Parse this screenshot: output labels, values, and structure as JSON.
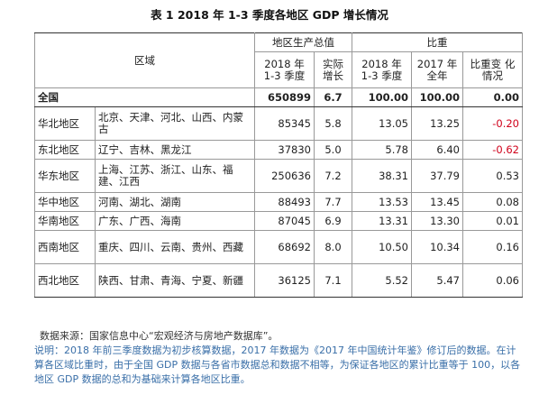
{
  "title": "表 1   2018 年 1-3 季度各地区 GDP 增长情况",
  "header": {
    "region": "区域",
    "gdp_group": "地区生产总值",
    "ratio_group": "比重",
    "gdp_2018": "2018 年 1-3 季度",
    "growth": "实际 增长",
    "share_2018": "2018 年 1-3 季度",
    "share_2017": "2017 年全年",
    "share_change": "比重变 化情况"
  },
  "national": {
    "name": "全国",
    "gdp": "650899",
    "growth": "6.7",
    "share_2018": "100.00",
    "share_2017": "100.00",
    "change": "0.00"
  },
  "rows": [
    {
      "region": "华北地区",
      "provinces": "北京、天津、河北、山西、内蒙古",
      "gdp": "85345",
      "growth": "5.8",
      "share_2018": "13.05",
      "share_2017": "13.25",
      "change": "-0.20",
      "neg": true
    },
    {
      "region": "东北地区",
      "provinces": "辽宁、吉林、黑龙江",
      "gdp": "37830",
      "growth": "5.0",
      "share_2018": "5.78",
      "share_2017": "6.40",
      "change": "-0.62",
      "neg": true
    },
    {
      "region": "华东地区",
      "provinces": "上海、江苏、浙江、山东、福建、江西",
      "gdp": "250636",
      "growth": "7.2",
      "share_2018": "38.31",
      "share_2017": "37.79",
      "change": "0.53",
      "neg": false
    },
    {
      "region": "华中地区",
      "provinces": "河南、湖北、湖南",
      "gdp": "88493",
      "growth": "7.7",
      "share_2018": "13.53",
      "share_2017": "13.45",
      "change": "0.08",
      "neg": false
    },
    {
      "region": "华南地区",
      "provinces": "广东、广西、海南",
      "gdp": "87045",
      "growth": "6.9",
      "share_2018": "13.31",
      "share_2017": "13.30",
      "change": "0.01",
      "neg": false
    },
    {
      "region": "西南地区",
      "provinces": "重庆、四川、云南、贵州、西藏",
      "gdp": "68692",
      "growth": "8.0",
      "share_2018": "10.50",
      "share_2017": "10.34",
      "change": "0.16",
      "neg": false
    },
    {
      "region": "西北地区",
      "provinces": "陕西、甘肃、青海、宁夏、新疆",
      "gdp": "36125",
      "growth": "7.1",
      "share_2018": "5.52",
      "share_2017": "5.47",
      "change": "0.06",
      "neg": false
    }
  ],
  "source": "数据来源：国家信息中心“宏观经济与房地产数据库”。",
  "note": "说明：2018 年前三季度数据为初步核算数据，2017 年数据为《2017 年中国统计年鉴》修订后的数据。在计算各区域比重时，由于全国 GDP 数据与各省市数据总和数据不相等，为保证各地区的累计比重等于 100，以各地区 GDP 数据的总和为基础来计算各地区比重。"
}
